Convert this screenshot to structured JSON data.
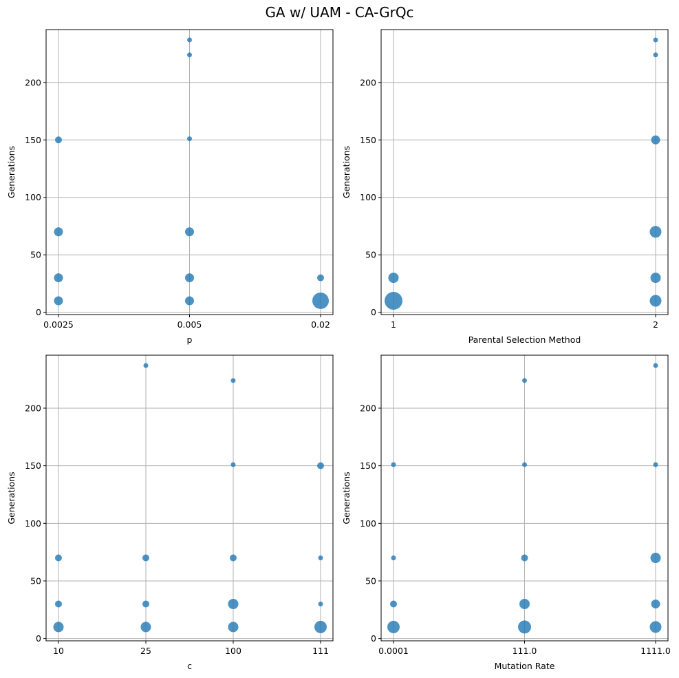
{
  "figure": {
    "title": "GA w/ UAM - CA-GrQc"
  },
  "colors": {
    "marker": "#1f77b4",
    "grid": "#b0b0b0",
    "axis": "#000000"
  },
  "chart_data": [
    {
      "type": "scatter",
      "title": "",
      "xlabel": "p",
      "ylabel": "Generations",
      "categories": [
        "0.0025",
        "0.005",
        "0.02"
      ],
      "yticks": [
        0,
        50,
        100,
        150,
        200
      ],
      "ylim": [
        -2,
        246
      ],
      "grid": true,
      "points": [
        {
          "x": "0.0025",
          "y": 150,
          "size": 2
        },
        {
          "x": "0.0025",
          "y": 70,
          "size": 3
        },
        {
          "x": "0.0025",
          "y": 30,
          "size": 3
        },
        {
          "x": "0.0025",
          "y": 10,
          "size": 3
        },
        {
          "x": "0.005",
          "y": 237,
          "size": 1
        },
        {
          "x": "0.005",
          "y": 224,
          "size": 1
        },
        {
          "x": "0.005",
          "y": 151,
          "size": 1
        },
        {
          "x": "0.005",
          "y": 70,
          "size": 3
        },
        {
          "x": "0.005",
          "y": 30,
          "size": 3
        },
        {
          "x": "0.005",
          "y": 10,
          "size": 3
        },
        {
          "x": "0.02",
          "y": 30,
          "size": 2
        },
        {
          "x": "0.02",
          "y": 10,
          "size": 9
        }
      ]
    },
    {
      "type": "scatter",
      "title": "",
      "xlabel": "Parental Selection Method",
      "ylabel": "Generations",
      "categories": [
        "1",
        "2"
      ],
      "yticks": [
        0,
        50,
        100,
        150,
        200
      ],
      "ylim": [
        -2,
        246
      ],
      "grid": true,
      "points": [
        {
          "x": "1",
          "y": 30,
          "size": 4
        },
        {
          "x": "1",
          "y": 10,
          "size": 10
        },
        {
          "x": "2",
          "y": 237,
          "size": 1
        },
        {
          "x": "2",
          "y": 224,
          "size": 1
        },
        {
          "x": "2",
          "y": 150,
          "size": 3
        },
        {
          "x": "2",
          "y": 70,
          "size": 5
        },
        {
          "x": "2",
          "y": 30,
          "size": 4
        },
        {
          "x": "2",
          "y": 10,
          "size": 5
        }
      ]
    },
    {
      "type": "scatter",
      "title": "",
      "xlabel": "c",
      "ylabel": "Generations",
      "categories": [
        "10",
        "25",
        "100",
        "111"
      ],
      "yticks": [
        0,
        50,
        100,
        150,
        200
      ],
      "ylim": [
        -2,
        246
      ],
      "grid": true,
      "points": [
        {
          "x": "10",
          "y": 70,
          "size": 2
        },
        {
          "x": "10",
          "y": 30,
          "size": 2
        },
        {
          "x": "10",
          "y": 10,
          "size": 4
        },
        {
          "x": "25",
          "y": 237,
          "size": 1
        },
        {
          "x": "25",
          "y": 70,
          "size": 2
        },
        {
          "x": "25",
          "y": 30,
          "size": 2
        },
        {
          "x": "25",
          "y": 10,
          "size": 4
        },
        {
          "x": "100",
          "y": 224,
          "size": 1
        },
        {
          "x": "100",
          "y": 151,
          "size": 1
        },
        {
          "x": "100",
          "y": 70,
          "size": 2
        },
        {
          "x": "100",
          "y": 30,
          "size": 4
        },
        {
          "x": "100",
          "y": 10,
          "size": 4
        },
        {
          "x": "111",
          "y": 150,
          "size": 2
        },
        {
          "x": "111",
          "y": 70,
          "size": 1
        },
        {
          "x": "111",
          "y": 30,
          "size": 1
        },
        {
          "x": "111",
          "y": 10,
          "size": 6
        }
      ]
    },
    {
      "type": "scatter",
      "title": "",
      "xlabel": "Mutation Rate",
      "ylabel": "Generations",
      "categories": [
        "0.0001",
        "111.0",
        "1111.0"
      ],
      "yticks": [
        0,
        50,
        100,
        150,
        200
      ],
      "ylim": [
        -2,
        246
      ],
      "grid": true,
      "points": [
        {
          "x": "0.0001",
          "y": 151,
          "size": 1
        },
        {
          "x": "0.0001",
          "y": 70,
          "size": 1
        },
        {
          "x": "0.0001",
          "y": 30,
          "size": 2
        },
        {
          "x": "0.0001",
          "y": 10,
          "size": 6
        },
        {
          "x": "111.0",
          "y": 224,
          "size": 1
        },
        {
          "x": "111.0",
          "y": 151,
          "size": 1
        },
        {
          "x": "111.0",
          "y": 70,
          "size": 2
        },
        {
          "x": "111.0",
          "y": 30,
          "size": 4
        },
        {
          "x": "111.0",
          "y": 10,
          "size": 7
        },
        {
          "x": "1111.0",
          "y": 237,
          "size": 1
        },
        {
          "x": "1111.0",
          "y": 151,
          "size": 1
        },
        {
          "x": "1111.0",
          "y": 70,
          "size": 4
        },
        {
          "x": "1111.0",
          "y": 30,
          "size": 3
        },
        {
          "x": "1111.0",
          "y": 10,
          "size": 5
        }
      ]
    }
  ]
}
